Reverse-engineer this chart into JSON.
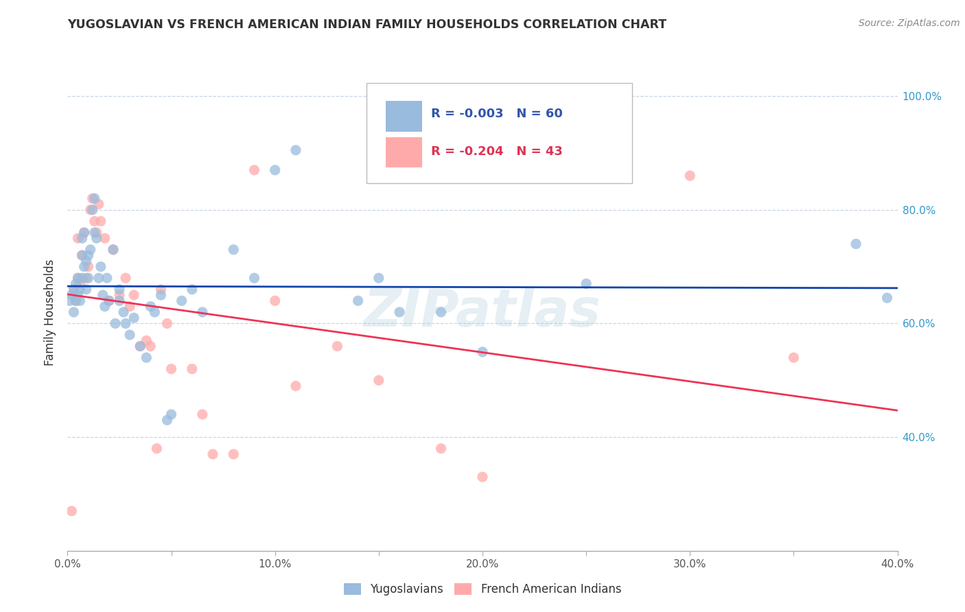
{
  "title": "YUGOSLAVIAN VS FRENCH AMERICAN INDIAN FAMILY HOUSEHOLDS CORRELATION CHART",
  "source": "Source: ZipAtlas.com",
  "ylabel": "Family Households",
  "x_min": 0.0,
  "x_max": 0.4,
  "y_min": 0.2,
  "y_max": 1.04,
  "color_blue": "#99BBDD",
  "color_pink": "#FFAAAA",
  "color_line_blue": "#1144AA",
  "color_line_pink": "#EE3355",
  "legend_blue_r": "-0.003",
  "legend_blue_n": "60",
  "legend_pink_r": "-0.204",
  "legend_pink_n": "43",
  "legend_label_blue": "Yugoslavians",
  "legend_label_pink": "French American Indians",
  "watermark": "ZIPatlas",
  "yugoslavian_x": [
    0.001,
    0.002,
    0.003,
    0.003,
    0.004,
    0.004,
    0.005,
    0.005,
    0.006,
    0.006,
    0.007,
    0.007,
    0.007,
    0.008,
    0.008,
    0.009,
    0.009,
    0.01,
    0.01,
    0.011,
    0.012,
    0.013,
    0.013,
    0.014,
    0.015,
    0.016,
    0.017,
    0.018,
    0.019,
    0.02,
    0.022,
    0.023,
    0.025,
    0.025,
    0.027,
    0.028,
    0.03,
    0.032,
    0.035,
    0.038,
    0.04,
    0.042,
    0.045,
    0.048,
    0.05,
    0.055,
    0.06,
    0.065,
    0.08,
    0.09,
    0.1,
    0.11,
    0.14,
    0.15,
    0.16,
    0.18,
    0.2,
    0.25,
    0.38,
    0.395
  ],
  "yugoslavian_y": [
    0.64,
    0.65,
    0.62,
    0.66,
    0.67,
    0.64,
    0.68,
    0.65,
    0.66,
    0.64,
    0.72,
    0.75,
    0.68,
    0.76,
    0.7,
    0.71,
    0.66,
    0.72,
    0.68,
    0.73,
    0.8,
    0.82,
    0.76,
    0.75,
    0.68,
    0.7,
    0.65,
    0.63,
    0.68,
    0.64,
    0.73,
    0.6,
    0.66,
    0.64,
    0.62,
    0.6,
    0.58,
    0.61,
    0.56,
    0.54,
    0.63,
    0.62,
    0.65,
    0.43,
    0.44,
    0.64,
    0.66,
    0.62,
    0.73,
    0.68,
    0.87,
    0.905,
    0.64,
    0.68,
    0.62,
    0.62,
    0.55,
    0.67,
    0.74,
    0.645
  ],
  "french_x": [
    0.002,
    0.003,
    0.004,
    0.005,
    0.005,
    0.006,
    0.007,
    0.008,
    0.009,
    0.01,
    0.011,
    0.012,
    0.013,
    0.014,
    0.015,
    0.016,
    0.018,
    0.02,
    0.022,
    0.025,
    0.028,
    0.03,
    0.032,
    0.035,
    0.038,
    0.04,
    0.043,
    0.045,
    0.048,
    0.05,
    0.06,
    0.065,
    0.07,
    0.08,
    0.09,
    0.1,
    0.11,
    0.13,
    0.15,
    0.18,
    0.2,
    0.3,
    0.35
  ],
  "french_y": [
    0.27,
    0.66,
    0.64,
    0.68,
    0.75,
    0.67,
    0.72,
    0.76,
    0.68,
    0.7,
    0.8,
    0.82,
    0.78,
    0.76,
    0.81,
    0.78,
    0.75,
    0.64,
    0.73,
    0.65,
    0.68,
    0.63,
    0.65,
    0.56,
    0.57,
    0.56,
    0.38,
    0.66,
    0.6,
    0.52,
    0.52,
    0.44,
    0.37,
    0.37,
    0.87,
    0.64,
    0.49,
    0.56,
    0.5,
    0.38,
    0.33,
    0.86,
    0.54
  ]
}
